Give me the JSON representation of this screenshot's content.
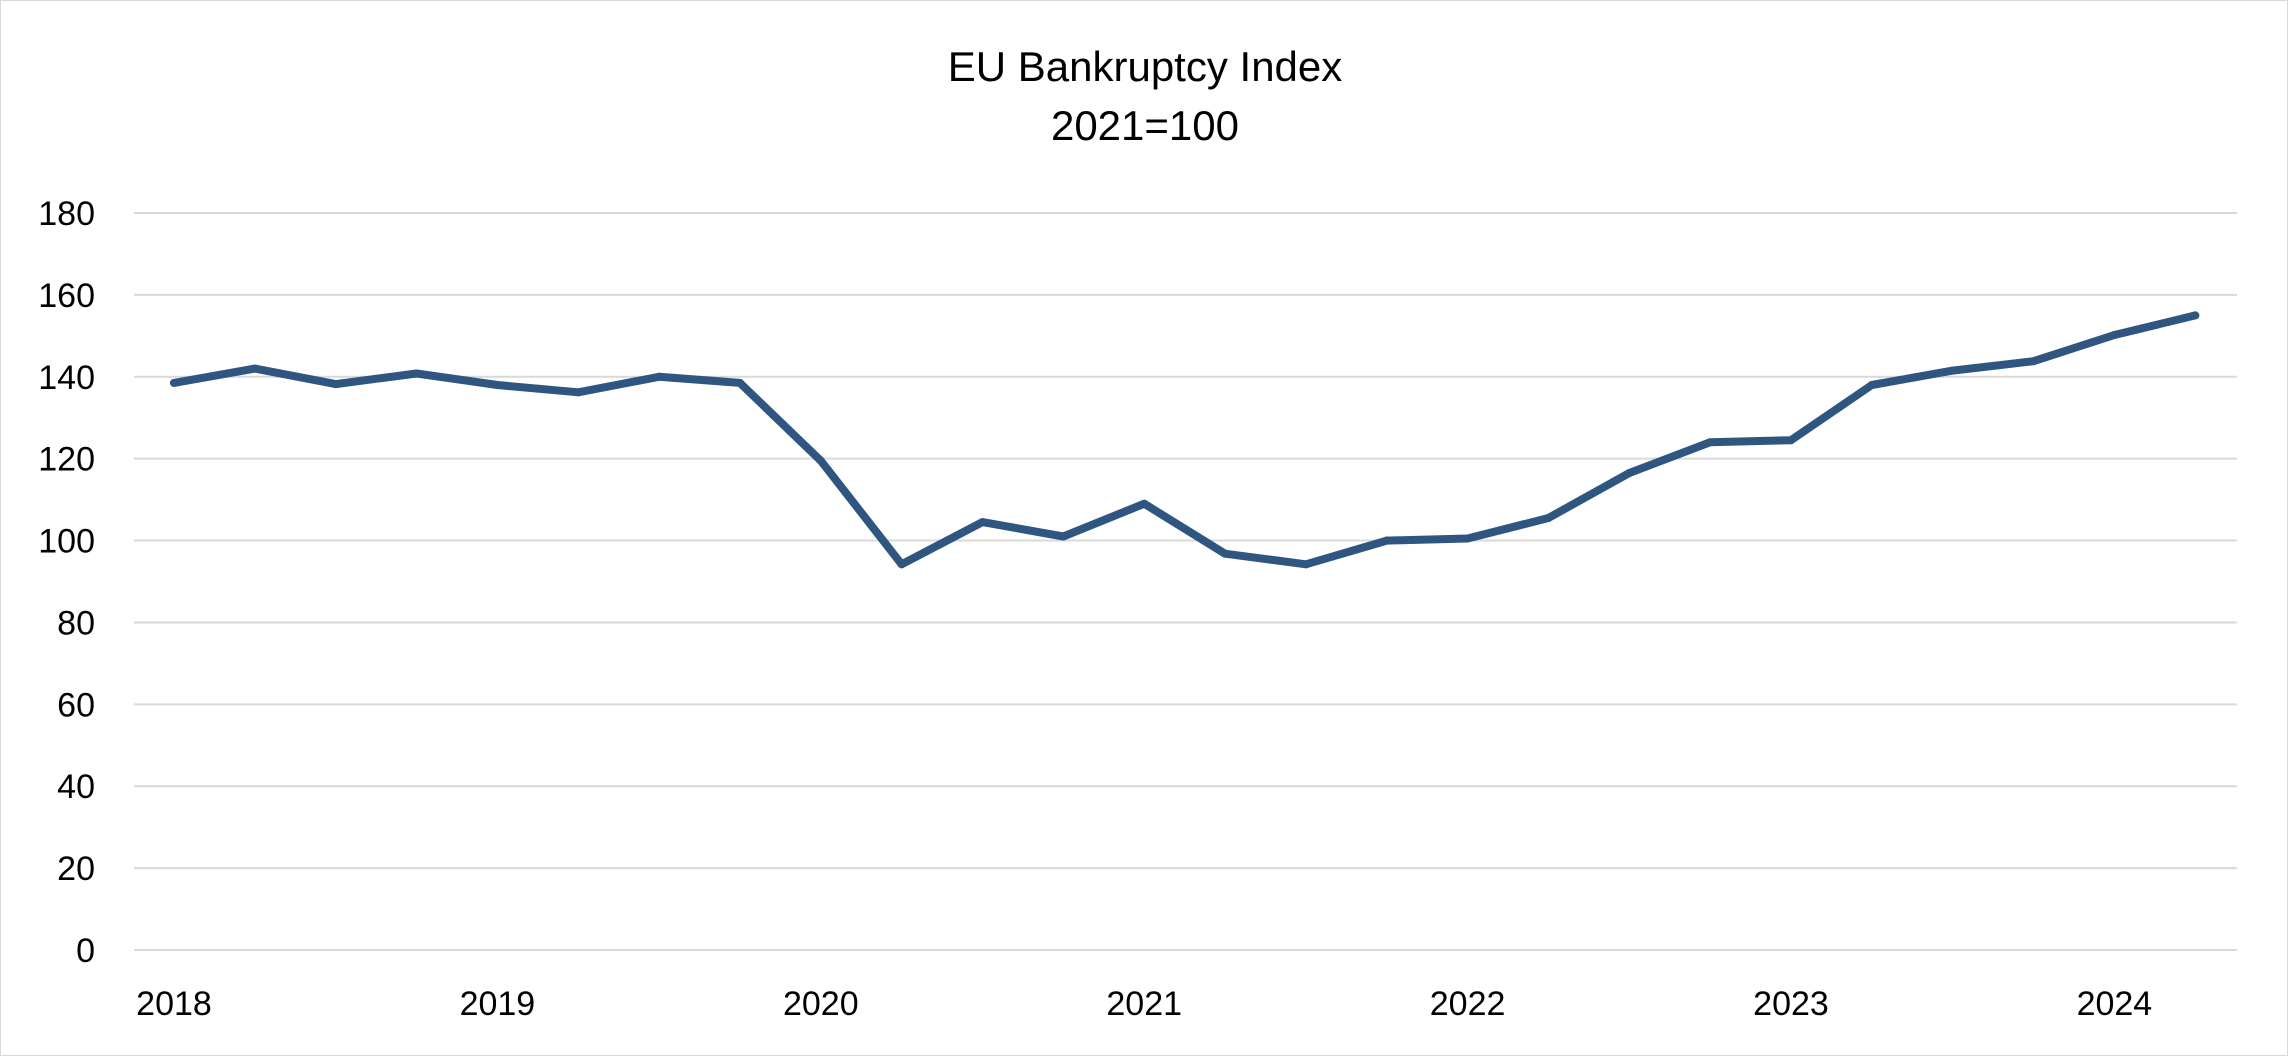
{
  "chart_data": {
    "type": "line",
    "title": "EU Bankruptcy Index",
    "subtitle": "2021=100",
    "xlabel": "",
    "ylabel": "",
    "ylim": [
      0,
      180
    ],
    "y_ticks": [
      0,
      20,
      40,
      60,
      80,
      100,
      120,
      140,
      160,
      180
    ],
    "x_tick_labels": [
      "2018",
      "2019",
      "2020",
      "2021",
      "2022",
      "2023",
      "2024"
    ],
    "x": [
      "2018-Q1",
      "2018-Q2",
      "2018-Q3",
      "2018-Q4",
      "2019-Q1",
      "2019-Q2",
      "2019-Q3",
      "2019-Q4",
      "2020-Q1",
      "2020-Q2",
      "2020-Q3",
      "2020-Q4",
      "2021-Q1",
      "2021-Q2",
      "2021-Q3",
      "2021-Q4",
      "2022-Q1",
      "2022-Q2",
      "2022-Q3",
      "2022-Q4",
      "2023-Q1",
      "2023-Q2",
      "2023-Q3",
      "2023-Q4",
      "2024-Q1",
      "2024-Q2"
    ],
    "series": [
      {
        "color": "#2e5680",
        "values": [
          138.5,
          142,
          138.2,
          140.8,
          138,
          136.2,
          140,
          138.5,
          119.5,
          94.2,
          104.5,
          101,
          109,
          96.8,
          94.2,
          100,
          100.5,
          105.5,
          116.5,
          124,
          124.5,
          138,
          141.5,
          143.8,
          150.2,
          155
        ]
      }
    ],
    "grid": true,
    "legend": "none"
  }
}
